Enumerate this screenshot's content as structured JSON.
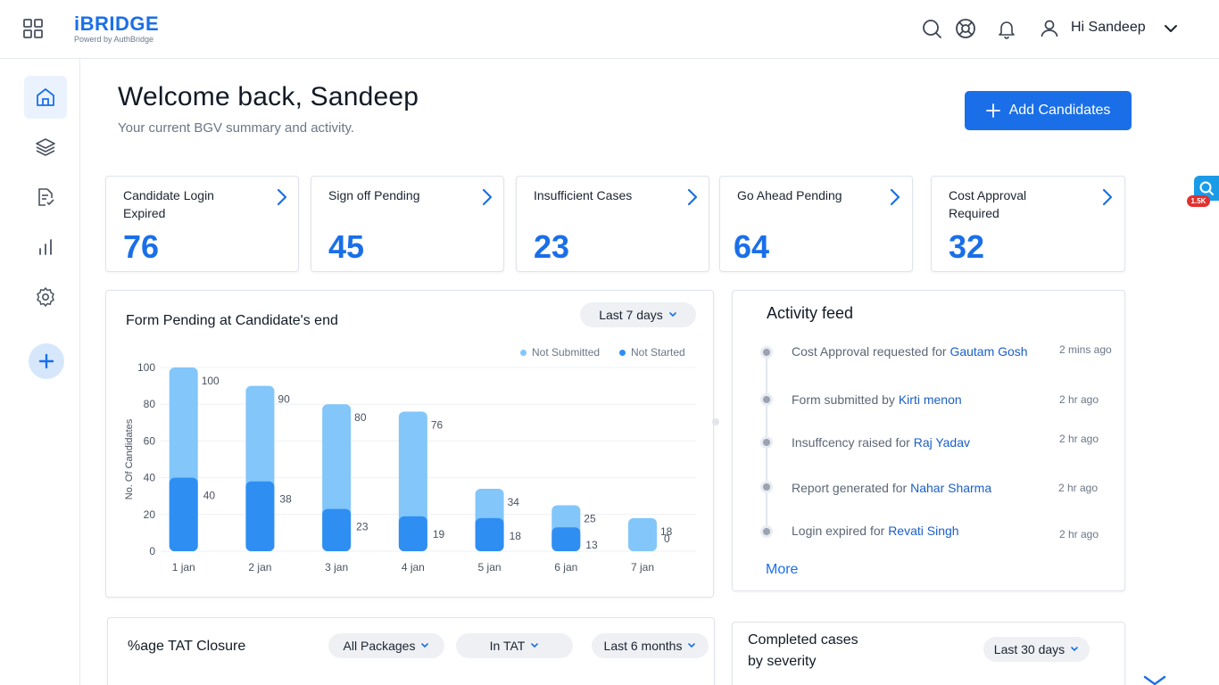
{
  "brand": {
    "name": "iBRIDGE",
    "tagline": "Powerd by AuthBridge"
  },
  "header": {
    "greeting": "Hi Sandeep"
  },
  "welcome": {
    "title": "Welcome back, Sandeep",
    "subtitle": "Your current BGV summary and activity.",
    "add_button_label": "Add Candidates"
  },
  "stats": [
    {
      "label": "Candidate Login Expired",
      "value": "76"
    },
    {
      "label": "Sign off Pending",
      "value": "45"
    },
    {
      "label": "Insufficient Cases",
      "value": "23"
    },
    {
      "label": "Go Ahead Pending",
      "value": "64"
    },
    {
      "label": "Cost Approval Required",
      "value": "32"
    }
  ],
  "form_pending": {
    "title": "Form Pending at Candidate's end",
    "range_label": "Last 7 days",
    "legend_not_submitted": "Not Submitted",
    "legend_not_started": "Not Started"
  },
  "chart_data": {
    "type": "bar",
    "categories": [
      "1 jan",
      "2 jan",
      "3 jan",
      "4 jan",
      "5 jan",
      "6 jan",
      "7 jan"
    ],
    "series": [
      {
        "name": "Not Submitted",
        "values": [
          100,
          90,
          80,
          76,
          34,
          25,
          18
        ],
        "color": "#82c6fa"
      },
      {
        "name": "Not Started",
        "values": [
          40,
          38,
          23,
          19,
          18,
          13,
          0
        ],
        "color": "#2f8ef2"
      }
    ],
    "yticks": [
      0,
      20,
      40,
      60,
      80,
      100
    ],
    "ylabel": "No. Of Candidates",
    "ylim": [
      0,
      100
    ]
  },
  "activity": {
    "title": "Activity feed",
    "items": [
      {
        "text": "Cost Approval requested for ",
        "who": "Gautam Gosh",
        "time": "2 mins ago"
      },
      {
        "text": "Form submitted by ",
        "who": "Kirti menon",
        "time": "2 hr ago"
      },
      {
        "text": "Insuffcency raised for ",
        "who": "Raj Yadav",
        "time": "2 hr ago"
      },
      {
        "text": "Report generated for ",
        "who": "Nahar Sharma",
        "time": "2 hr ago"
      },
      {
        "text": "Login expired for ",
        "who": "Revati  Singh",
        "time": "2 hr ago"
      }
    ],
    "more_label": "More"
  },
  "tat": {
    "title": "%age TAT Closure",
    "filter_packages": "All Packages",
    "filter_tat": "In TAT",
    "filter_range": "Last 6 months"
  },
  "completed": {
    "title_line1": "Completed cases",
    "title_line2": "by severity",
    "range_label": "Last 30 days"
  },
  "side_widget": {
    "badge": "1.5K"
  },
  "colors": {
    "accent": "#1a6fe8",
    "bar_light": "#82c6fa",
    "bar_dark": "#2f8ef2"
  }
}
